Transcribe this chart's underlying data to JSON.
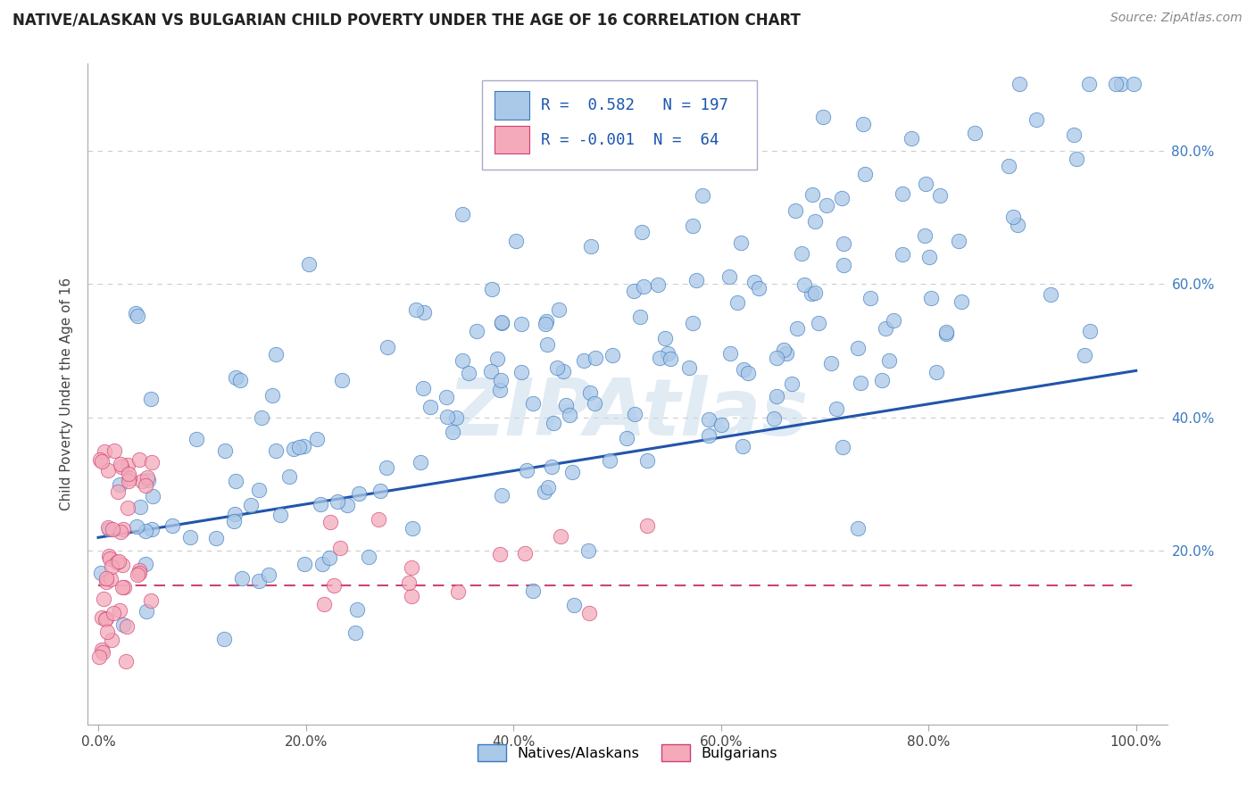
{
  "title": "NATIVE/ALASKAN VS BULGARIAN CHILD POVERTY UNDER THE AGE OF 16 CORRELATION CHART",
  "source": "Source: ZipAtlas.com",
  "ylabel": "Child Poverty Under the Age of 16",
  "background_color": "#ffffff",
  "native_fill": "#aac8e8",
  "native_edge": "#3a7abf",
  "bulgarian_fill": "#f4aabb",
  "bulgarian_edge": "#d04070",
  "native_R": 0.582,
  "native_N": 197,
  "bulgarian_R": -0.001,
  "bulgarian_N": 64,
  "grid_color": "#cccccc",
  "native_line_color": "#2255aa",
  "bulgarian_line_color": "#cc4477",
  "watermark_color": "#c5d8ea",
  "watermark_alpha": 0.5,
  "right_tick_color": "#3a7abf",
  "title_fontsize": 12,
  "source_fontsize": 10,
  "tick_fontsize": 11,
  "ylabel_fontsize": 11
}
